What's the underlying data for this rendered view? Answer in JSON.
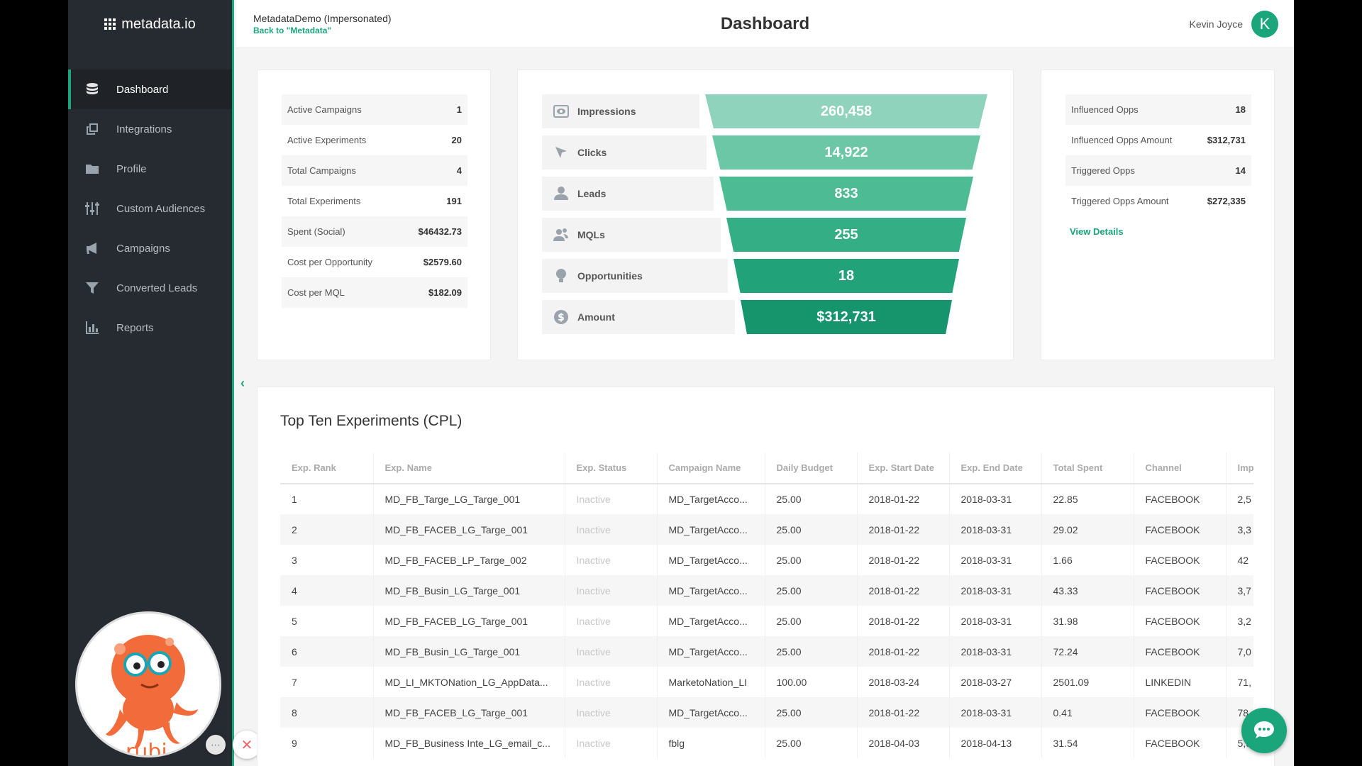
{
  "sidebar": {
    "logo_text": "metadata.io",
    "items": [
      {
        "label": "Dashboard",
        "icon": "database-icon",
        "active": true
      },
      {
        "label": "Integrations",
        "icon": "integrations-icon"
      },
      {
        "label": "Profile",
        "icon": "folder-icon"
      },
      {
        "label": "Custom Audiences",
        "icon": "sliders-icon"
      },
      {
        "label": "Campaigns",
        "icon": "megaphone-icon"
      },
      {
        "label": "Converted Leads",
        "icon": "funnel-icon"
      },
      {
        "label": "Reports",
        "icon": "bar-chart-icon"
      }
    ]
  },
  "header": {
    "account_name": "MetadataDemo (Impersonated)",
    "back_link": "Back to \"Metadata\"",
    "title": "Dashboard",
    "user_name": "Kevin Joyce",
    "avatar_initial": "K"
  },
  "stats": [
    {
      "label": "Active Campaigns",
      "value": "1"
    },
    {
      "label": "Active Experiments",
      "value": "20"
    },
    {
      "label": "Total Campaigns",
      "value": "4"
    },
    {
      "label": "Total Experiments",
      "value": "191"
    },
    {
      "label": "Spent (Social)",
      "value": "$46432.73"
    },
    {
      "label": "Cost per Opportunity",
      "value": "$2579.60"
    },
    {
      "label": "Cost per MQL",
      "value": "$182.09"
    }
  ],
  "funnel": [
    {
      "label": "Impressions",
      "value": "260,458",
      "icon": "eye-icon",
      "color": "#8fd3bd"
    },
    {
      "label": "Clicks",
      "value": "14,922",
      "icon": "cursor-icon",
      "color": "#6cc7a6"
    },
    {
      "label": "Leads",
      "value": "833",
      "icon": "user-icon",
      "color": "#4dbb94"
    },
    {
      "label": "MQLs",
      "value": "255",
      "icon": "users-icon",
      "color": "#33ae85"
    },
    {
      "label": "Opportunities",
      "value": "18",
      "icon": "bulb-icon",
      "color": "#21a278"
    },
    {
      "label": "Amount",
      "value": "$312,731",
      "icon": "dollar-icon",
      "color": "#16946c"
    }
  ],
  "opps": [
    {
      "label": "Influenced Opps",
      "value": "18"
    },
    {
      "label": "Influenced Opps Amount",
      "value": "$312,731"
    },
    {
      "label": "Triggered Opps",
      "value": "14"
    },
    {
      "label": "Triggered Opps Amount",
      "value": "$272,335"
    }
  ],
  "view_details": "View Details",
  "table": {
    "title": "Top Ten Experiments (CPL)",
    "columns": [
      "Exp. Rank",
      "Exp. Name",
      "Exp. Status",
      "Campaign Name",
      "Daily Budget",
      "Exp. Start Date",
      "Exp. End Date",
      "Total Spent",
      "Channel",
      "Imp"
    ],
    "rows": [
      [
        "1",
        "MD_FB_Targe_LG_Targe_001",
        "Inactive",
        "MD_TargetAcco...",
        "25.00",
        "2018-01-22",
        "2018-03-31",
        "22.85",
        "FACEBOOK",
        "2,5"
      ],
      [
        "2",
        "MD_FB_FACEB_LG_Targe_001",
        "Inactive",
        "MD_TargetAcco...",
        "25.00",
        "2018-01-22",
        "2018-03-31",
        "29.02",
        "FACEBOOK",
        "3,3"
      ],
      [
        "3",
        "MD_FB_FACEB_LP_Targe_002",
        "Inactive",
        "MD_TargetAcco...",
        "25.00",
        "2018-01-22",
        "2018-03-31",
        "1.66",
        "FACEBOOK",
        "42"
      ],
      [
        "4",
        "MD_FB_Busin_LG_Targe_001",
        "Inactive",
        "MD_TargetAcco...",
        "25.00",
        "2018-01-22",
        "2018-03-31",
        "43.33",
        "FACEBOOK",
        "3,7"
      ],
      [
        "5",
        "MD_FB_FACEB_LG_Targe_001",
        "Inactive",
        "MD_TargetAcco...",
        "25.00",
        "2018-01-22",
        "2018-03-31",
        "31.98",
        "FACEBOOK",
        "3,2"
      ],
      [
        "6",
        "MD_FB_Busin_LG_Targe_001",
        "Inactive",
        "MD_TargetAcco...",
        "25.00",
        "2018-01-22",
        "2018-03-31",
        "72.24",
        "FACEBOOK",
        "7,0"
      ],
      [
        "7",
        "MD_LI_MKTONation_LG_AppData...",
        "Inactive",
        "MarketoNation_LI",
        "100.00",
        "2018-03-24",
        "2018-03-27",
        "2501.09",
        "LINKEDIN",
        "71,"
      ],
      [
        "8",
        "MD_FB_FACEB_LG_Targe_001",
        "Inactive",
        "MD_TargetAcco...",
        "25.00",
        "2018-01-22",
        "2018-03-31",
        "0.41",
        "FACEBOOK",
        "78"
      ],
      [
        "9",
        "MD_FB_Business Inte_LG_email_c...",
        "Inactive",
        "fblg",
        "25.00",
        "2018-04-03",
        "2018-04-13",
        "31.54",
        "FACEBOOK",
        "5,6"
      ]
    ]
  },
  "mascot_label": "rubi",
  "controls": {
    "more": "⋯",
    "close": "✕",
    "pause": "❚❚",
    "confirm": "✔"
  },
  "collapse_glyph": "‹"
}
